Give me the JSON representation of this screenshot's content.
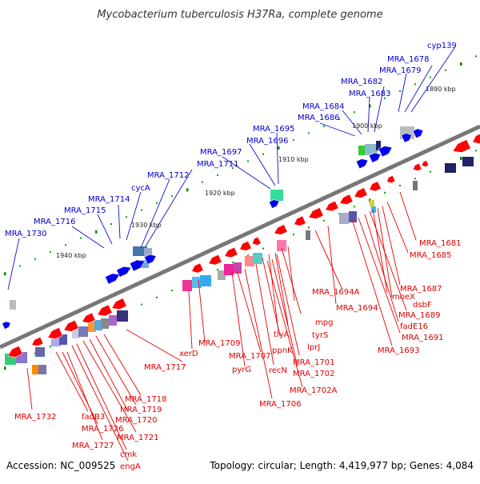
{
  "title": "Mycobacterium tuberculosis H37Ra, complete genome",
  "footer": {
    "accession": "Accession: NC_009525",
    "stats": "Topology: circular; Length: 4,419,977 bp; Genes: 4,084"
  },
  "colors": {
    "backbone": "#777777",
    "forward_gene": "#0000ee",
    "reverse_gene": "#ff0000",
    "forward_label": "#0000cc",
    "reverse_label": "#dd0000",
    "tick_major": "#008800"
  },
  "kbp_ticks": [
    "1890 kbp",
    "1900 kbp",
    "1910 kbp",
    "1920 kbp",
    "1930 kbp",
    "1940 kbp"
  ],
  "labels_top": [
    "cyp139",
    "MRA_1678",
    "MRA_1679",
    "MRA_1682",
    "MRA_1683",
    "MRA_1684",
    "MRA_1686",
    "MRA_1695",
    "MRA_1696",
    "MRA_1697",
    "MRA_1711",
    "MRA_1712",
    "cycA",
    "MRA_1714",
    "MRA_1715",
    "MRA_1716",
    "MRA_1730"
  ],
  "labels_bottom": [
    "MRA_1681",
    "MRA_1685",
    "MRA_1687",
    "dsbF",
    "moeX",
    "MRA_1689",
    "fadE16",
    "MRA_1691",
    "MRA_1693",
    "MRA_1694A",
    "MRA_1694",
    "mpg",
    "tyrS",
    "lprJ",
    "tlyA",
    "ppnK",
    "MRA_1701",
    "recN",
    "MRA_1702",
    "MRA_1702A",
    "MRA_1706",
    "MRA_1707",
    "pyrG",
    "MRA_1709",
    "xerD",
    "MRA_1717",
    "MRA_1718",
    "MRA_1719",
    "MRA_1720",
    "MRA_1721",
    "cmk",
    "engA",
    "fadB3",
    "MRA_1726",
    "MRA_1727",
    "MRA_1732"
  ]
}
